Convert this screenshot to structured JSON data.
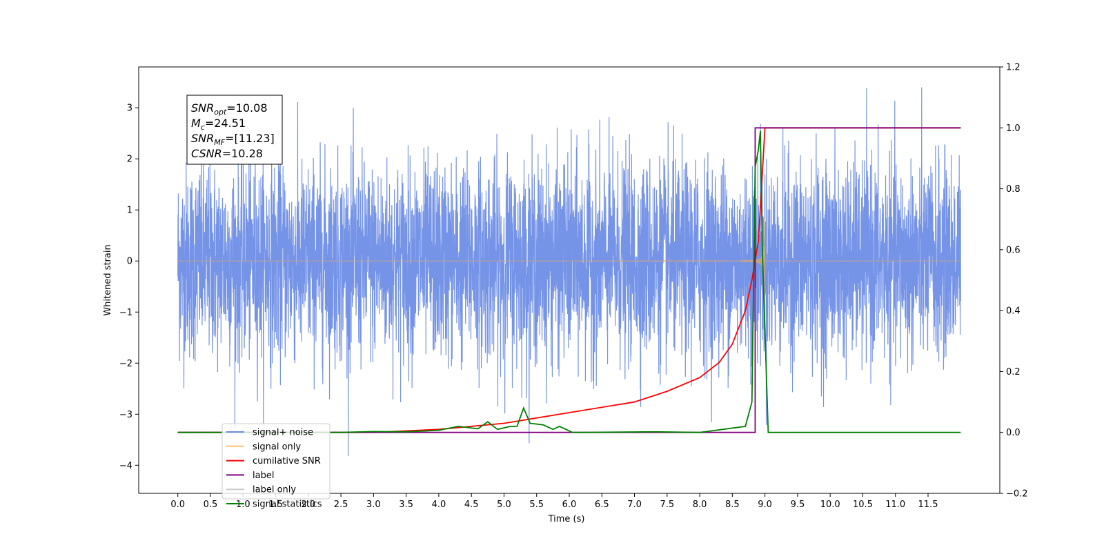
{
  "chart_data": {
    "type": "line",
    "xlabel": "Time (s)",
    "ylabel_left": "Whitened strain",
    "ylabel_right": "",
    "xlim": [
      -0.6,
      12.6
    ],
    "ylim_left": [
      -4.55,
      3.8
    ],
    "ylim_right": [
      -0.2,
      1.2
    ],
    "x_ticks": [
      "0.0",
      "0.5",
      "1.0",
      "1.5",
      "2.0",
      "2.5",
      "3.0",
      "3.5",
      "4.0",
      "4.5",
      "5.0",
      "5.5",
      "6.0",
      "6.5",
      "7.0",
      "7.5",
      "8.0",
      "8.5",
      "9.0",
      "9.5",
      "10.0",
      "10.5",
      "11.0",
      "11.5"
    ],
    "y_left_ticks": [
      "3",
      "2",
      "1",
      "0",
      "−1",
      "−2",
      "−3",
      "−4"
    ],
    "y_right_ticks": [
      "1.2",
      "1.0",
      "0.8",
      "0.6",
      "0.4",
      "0.2",
      "0.0",
      "−0.2"
    ],
    "annotation": {
      "lines": [
        {
          "sym": "SNR",
          "sub": "opt",
          "rest": "=10.08"
        },
        {
          "sym": "M",
          "sub": "c",
          "rest": "=24.51"
        },
        {
          "sym": "SNR",
          "sub": "MF",
          "rest": "=[11.23]"
        },
        {
          "sym": "CSNR",
          "sub": "",
          "rest": "=10.28"
        }
      ]
    },
    "grid": false,
    "legend_position": "lower-left",
    "legend": [
      {
        "label": "signal+ noise",
        "color": "#6f8ee6"
      },
      {
        "label": "signal only",
        "color": "#ffc266"
      },
      {
        "label": "cumilative SNR",
        "color": "#ff0000"
      },
      {
        "label": "label",
        "color": "#800080"
      },
      {
        "label": "label only",
        "color": "#c8c8c8"
      },
      {
        "label": "signal statistics",
        "color": "#008000"
      }
    ],
    "series": [
      {
        "name": "signal+ noise",
        "axis": "left",
        "color": "#6f8ee6",
        "x_range": [
          0.0,
          12.0
        ],
        "amplitude_envelope": [
          -4.1,
          3.4
        ]
      },
      {
        "name": "signal only",
        "axis": "left",
        "color": "#d2a47a",
        "x_range": [
          0.0,
          12.0
        ],
        "chirp_peak_time": 9.0,
        "peak_amplitude": 0.85
      },
      {
        "name": "cumilative SNR",
        "axis": "right",
        "color": "#ff0000",
        "x": [
          0.0,
          3.0,
          4.0,
          5.0,
          6.0,
          7.0,
          7.5,
          8.0,
          8.3,
          8.5,
          8.7,
          8.8,
          8.9,
          9.0,
          12.0
        ],
        "y": [
          0.0,
          0.0,
          0.01,
          0.03,
          0.065,
          0.1,
          0.135,
          0.18,
          0.23,
          0.29,
          0.4,
          0.5,
          0.63,
          1.0,
          1.0
        ]
      },
      {
        "name": "label",
        "axis": "right",
        "color": "#800080",
        "x": [
          0.0,
          8.85,
          8.85,
          9.0,
          9.0,
          12.0
        ],
        "y": [
          0.0,
          0.0,
          1.0,
          1.0,
          1.0,
          1.0
        ]
      },
      {
        "name": "signal statistics",
        "axis": "right",
        "color": "#008000",
        "x": [
          0.0,
          2.5,
          3.0,
          3.5,
          4.0,
          4.3,
          4.6,
          4.75,
          4.9,
          5.1,
          5.2,
          5.3,
          5.4,
          5.6,
          5.75,
          5.85,
          6.05,
          6.2,
          7.3,
          8.0,
          8.7,
          8.8,
          8.85,
          8.9,
          8.93,
          8.96,
          9.05,
          12.0
        ],
        "y": [
          0.0,
          0.0,
          0.003,
          0.002,
          0.007,
          0.02,
          0.012,
          0.035,
          0.01,
          0.02,
          0.02,
          0.08,
          0.03,
          0.025,
          0.01,
          0.02,
          0.0,
          0.0,
          0.002,
          0.0,
          0.02,
          0.1,
          0.87,
          0.93,
          0.99,
          0.6,
          0.0,
          0.0
        ]
      }
    ]
  }
}
